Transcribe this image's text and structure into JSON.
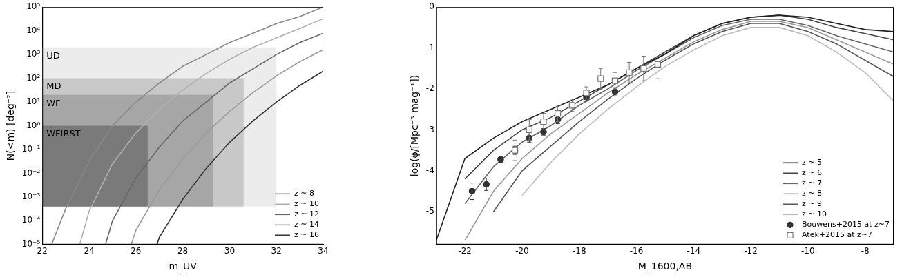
{
  "chart_data": [
    {
      "type": "line",
      "x_label": "m_UV",
      "y_label": "N(<m) [deg⁻²]",
      "xlim": [
        22,
        34
      ],
      "xticks": [
        22,
        24,
        26,
        28,
        30,
        32,
        34
      ],
      "ylim": [
        1e-05,
        100000
      ],
      "yticks": [
        {
          "value": 1e-05,
          "label": "10⁻⁵"
        },
        {
          "value": 0.0001,
          "label": "10⁻⁴"
        },
        {
          "value": 0.001,
          "label": "10⁻³"
        },
        {
          "value": 0.01,
          "label": "10⁻²"
        },
        {
          "value": 0.1,
          "label": "10⁻¹"
        },
        {
          "value": 1,
          "label": "10⁰"
        },
        {
          "value": 10,
          "label": "10¹"
        },
        {
          "value": 100,
          "label": "10²"
        },
        {
          "value": 1000,
          "label": "10³"
        },
        {
          "value": 10000,
          "label": "10⁴"
        },
        {
          "value": 100000,
          "label": "10⁵"
        }
      ],
      "log": "y",
      "grid": false,
      "legend": "lower right",
      "regions": [
        {
          "label": "UD",
          "x": [
            22,
            32
          ],
          "y": [
            0.0004,
            2000
          ],
          "color": "#ececec"
        },
        {
          "label": "MD",
          "x": [
            22,
            30.6
          ],
          "y": [
            0.0004,
            100
          ],
          "color": "#c8c8c8"
        },
        {
          "label": "WF",
          "x": [
            22,
            29.3
          ],
          "y": [
            0.0004,
            20
          ],
          "color": "#a6a6a6"
        },
        {
          "label": "WFIRST",
          "x": [
            22,
            26.5
          ],
          "y": [
            0.0004,
            1
          ],
          "color": "#7a7a7a"
        }
      ],
      "series": [
        {
          "name": "z ~ 8",
          "color": "#888888",
          "line_style": "solid",
          "x": [
            22.4,
            23,
            24,
            25,
            26,
            27,
            28,
            29,
            30,
            31,
            32,
            33,
            34
          ],
          "values": [
            1e-05,
            0.00032,
            0.032,
            1,
            10,
            63,
            320,
            1000,
            3200,
            7900,
            20000,
            40000,
            100000
          ]
        },
        {
          "name": "z ~ 10",
          "color": "#b0b0b0",
          "line_style": "solid",
          "x": [
            23.6,
            24,
            25,
            26,
            27,
            28,
            29,
            30,
            31,
            32,
            33,
            34
          ],
          "values": [
            1e-05,
            0.00025,
            0.025,
            0.5,
            5,
            32,
            160,
            630,
            2000,
            5000,
            12600,
            32000
          ]
        },
        {
          "name": "z ~ 12",
          "color": "#666666",
          "line_style": "solid",
          "x": [
            24.7,
            25,
            26,
            27,
            28,
            29,
            30,
            31,
            32,
            33,
            34
          ],
          "values": [
            1e-05,
            0.0001,
            0.0063,
            0.126,
            1.6,
            10,
            63,
            250,
            1000,
            3200,
            7900
          ]
        },
        {
          "name": "z ~ 14",
          "color": "#9a9a9a",
          "line_style": "solid",
          "x": [
            25.8,
            26,
            27,
            28,
            29,
            30,
            31,
            32,
            33,
            34
          ],
          "values": [
            1e-05,
            4e-05,
            0.002,
            0.04,
            0.5,
            4,
            25,
            126,
            500,
            1600
          ]
        },
        {
          "name": "z ~ 16",
          "color": "#333333",
          "line_style": "solid",
          "x": [
            26.9,
            27,
            28,
            29,
            30,
            31,
            32,
            33,
            34
          ],
          "values": [
            1e-05,
            2e-05,
            0.0008,
            0.016,
            0.2,
            1.6,
            10,
            50,
            200
          ]
        }
      ]
    },
    {
      "type": "line",
      "x_label": "M_1600,AB",
      "y_label": "log(φ/[Mpc⁻³ mag⁻¹])",
      "xlim": [
        -23,
        -7
      ],
      "xticks": [
        -22,
        -20,
        -18,
        -16,
        -14,
        -12,
        -10,
        -8
      ],
      "ylim": [
        -5.8,
        0
      ],
      "yticks": [
        -5,
        -4,
        -3,
        -2,
        -1,
        0
      ],
      "grid": false,
      "legend": "lower right",
      "series": [
        {
          "name": "z ~ 5",
          "color": "#222222",
          "type": "line",
          "line_style": "solid",
          "x": [
            -23,
            -22,
            -21,
            -20,
            -19,
            -18,
            -17,
            -16,
            -15,
            -14,
            -13,
            -12,
            -11,
            -10,
            -9,
            -8,
            -7
          ],
          "values": [
            -5.7,
            -3.7,
            -3.2,
            -2.8,
            -2.5,
            -2.2,
            -1.9,
            -1.5,
            -1.15,
            -0.7,
            -0.4,
            -0.25,
            -0.2,
            -0.25,
            -0.4,
            -0.55,
            -0.6
          ]
        },
        {
          "name": "z ~ 6",
          "color": "#444444",
          "type": "line",
          "line_style": "solid",
          "x": [
            -23,
            -22,
            -21,
            -20,
            -19,
            -18,
            -17,
            -16,
            -15,
            -14,
            -13,
            -12,
            -11,
            -10,
            -9,
            -8,
            -7
          ],
          "values": [
            null,
            -4.2,
            -3.5,
            -3.0,
            -2.7,
            -2.3,
            -1.9,
            -1.5,
            -1.1,
            -0.7,
            -0.4,
            -0.25,
            -0.2,
            -0.3,
            -0.5,
            -0.65,
            -0.8
          ]
        },
        {
          "name": "z ~ 7",
          "color": "#666666",
          "type": "line",
          "line_style": "solid",
          "x": [
            -23,
            -22,
            -21,
            -20,
            -19,
            -18,
            -17,
            -16,
            -15,
            -14,
            -13,
            -12,
            -11,
            -10,
            -9,
            -8,
            -7
          ],
          "values": [
            null,
            -4.8,
            -3.9,
            -3.3,
            -2.9,
            -2.4,
            -2.0,
            -1.55,
            -1.15,
            -0.75,
            -0.45,
            -0.3,
            -0.3,
            -0.45,
            -0.7,
            -0.9,
            -1.1
          ]
        },
        {
          "name": "z ~ 8",
          "color": "#999999",
          "type": "line",
          "line_style": "solid",
          "x": [
            -23,
            -22,
            -21,
            -20,
            -19,
            -18,
            -17,
            -16,
            -15,
            -14,
            -13,
            -12,
            -11,
            -10,
            -9,
            -8,
            -7
          ],
          "values": [
            null,
            -5.7,
            -4.5,
            -3.7,
            -3.1,
            -2.6,
            -2.1,
            -1.65,
            -1.25,
            -0.85,
            -0.55,
            -0.35,
            -0.35,
            -0.5,
            -0.8,
            -1.1,
            -1.4
          ]
        },
        {
          "name": "z ~ 9",
          "color": "#555555",
          "type": "line",
          "line_style": "solid",
          "x": [
            -23,
            -22,
            -21,
            -20,
            -19,
            -18,
            -17,
            -16,
            -15,
            -14,
            -13,
            -12,
            -11,
            -10,
            -9,
            -8,
            -7
          ],
          "values": [
            null,
            null,
            -5.0,
            -4.0,
            -3.4,
            -2.8,
            -2.25,
            -1.75,
            -1.3,
            -0.9,
            -0.6,
            -0.4,
            -0.4,
            -0.6,
            -0.9,
            -1.3,
            -1.7
          ]
        },
        {
          "name": "z ~ 10",
          "color": "#bbbbbb",
          "type": "line",
          "line_style": "solid",
          "x": [
            -23,
            -22,
            -21,
            -20,
            -19,
            -18,
            -17,
            -16,
            -15,
            -14,
            -13,
            -12,
            -11,
            -10,
            -9,
            -8,
            -7
          ],
          "values": [
            null,
            null,
            null,
            -4.6,
            -3.8,
            -3.1,
            -2.5,
            -1.95,
            -1.45,
            -1.05,
            -0.7,
            -0.5,
            -0.5,
            -0.7,
            -1.1,
            -1.6,
            -2.3
          ]
        },
        {
          "name": "Bouwens+2015 at z~7",
          "color": "#333333",
          "type": "scatter",
          "marker": "circle",
          "x": [
            -21.75,
            -21.25,
            -20.75,
            -20.25,
            -19.75,
            -19.25,
            -18.75,
            -17.75,
            -16.75
          ],
          "values": [
            -4.5,
            -4.33,
            -3.72,
            -3.5,
            -3.2,
            -3.05,
            -2.75,
            -2.2,
            -2.07
          ],
          "errors": [
            0.2,
            0.15,
            0.07,
            0.1,
            0.1,
            0.08,
            0.1,
            0.1,
            0.1
          ]
        },
        {
          "name": "Atek+2015 at z~7",
          "color": "#777777",
          "type": "scatter",
          "marker": "square_open",
          "x": [
            -20.25,
            -19.75,
            -19.25,
            -18.75,
            -18.25,
            -17.75,
            -17.25,
            -16.75,
            -16.25,
            -15.75,
            -15.25
          ],
          "values": [
            -3.5,
            -3.0,
            -2.8,
            -2.6,
            -2.4,
            -2.1,
            -1.75,
            -1.8,
            -1.6,
            -1.5,
            -1.4
          ],
          "errors": [
            0.25,
            0.25,
            0.2,
            0.2,
            0.15,
            0.15,
            0.25,
            0.2,
            0.25,
            0.3,
            0.35
          ]
        }
      ]
    }
  ]
}
